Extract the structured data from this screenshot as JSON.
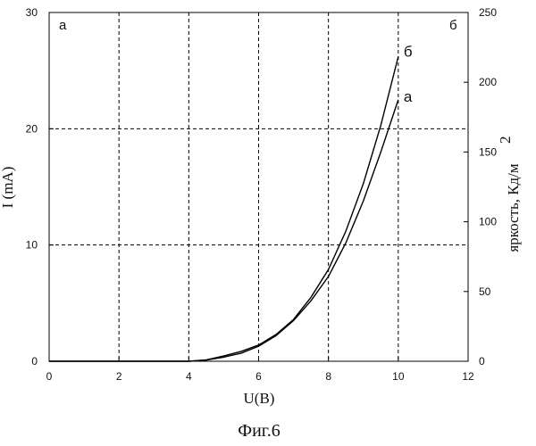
{
  "chart_data": {
    "type": "line",
    "xlabel": "U(B)",
    "ylabel_left": "I (mA)",
    "ylabel_right": "яркость, Кд/м",
    "ylabel_right_superscript": "2",
    "xlim": [
      0,
      12
    ],
    "ylim_left": [
      0,
      30
    ],
    "ylim_right": [
      0,
      250
    ],
    "x_ticks": [
      0,
      2,
      4,
      6,
      8,
      10,
      12
    ],
    "y_ticks_left": [
      0,
      10,
      20,
      30
    ],
    "y_ticks_right": [
      0,
      50,
      100,
      150,
      200,
      250
    ],
    "grid_x": [
      2,
      4,
      6,
      8,
      10
    ],
    "grid_y": [
      10,
      20
    ],
    "grid": true,
    "corner_label_left": "a",
    "corner_label_right": "б",
    "series": [
      {
        "name": "a",
        "axis": "left",
        "color": "#000000",
        "x": [
          4.0,
          4.5,
          5.0,
          5.5,
          6.0,
          6.5,
          7.0,
          7.5,
          8.0,
          8.5,
          9.0,
          9.5,
          10.0
        ],
        "y": [
          0.0,
          0.1,
          0.35,
          0.7,
          1.3,
          2.2,
          3.5,
          5.2,
          7.3,
          10.2,
          13.8,
          18.0,
          22.5
        ]
      },
      {
        "name": "б",
        "axis": "left",
        "color": "#000000",
        "x": [
          4.0,
          4.5,
          5.0,
          5.5,
          6.0,
          6.5,
          7.0,
          7.5,
          8.0,
          8.5,
          9.0,
          9.5,
          10.0
        ],
        "y": [
          0.0,
          0.12,
          0.45,
          0.85,
          1.4,
          2.3,
          3.6,
          5.5,
          7.9,
          11.2,
          15.3,
          20.3,
          26.2
        ]
      }
    ]
  },
  "caption": "Фиг.6"
}
